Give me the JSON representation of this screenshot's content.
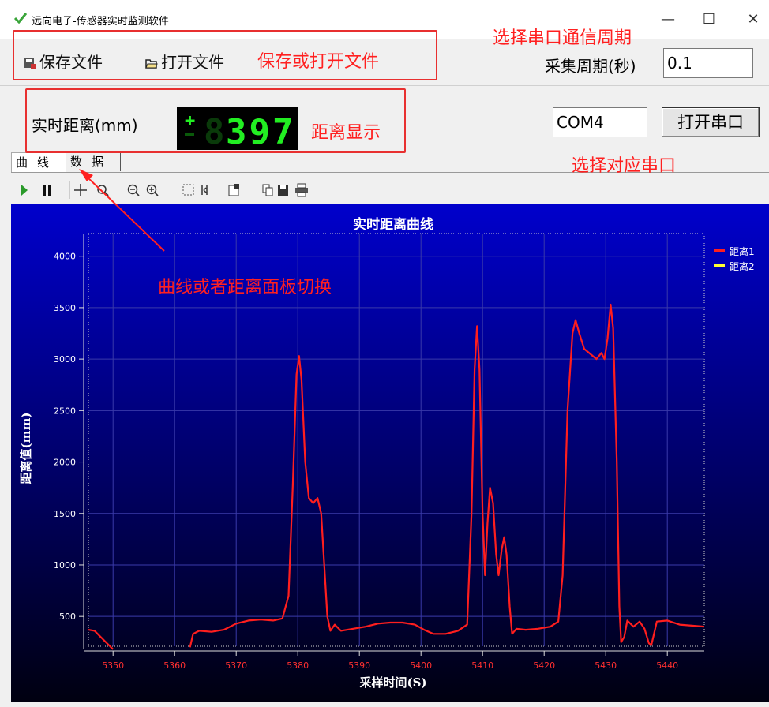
{
  "window": {
    "title": "远向电子-传感器实时监测软件",
    "minimize_glyph": "—",
    "maximize_glyph": "☐",
    "close_glyph": "✕"
  },
  "toolbar": {
    "save_label": "保存文件",
    "open_label": "打开文件"
  },
  "serial": {
    "period_label": "采集周期(秒)",
    "period_value": "0.1",
    "port_value": "COM4",
    "open_port_label": "打开串口"
  },
  "display": {
    "distance_label": "实时距离(mm)",
    "led_sign": "+",
    "led_value": "397"
  },
  "tabs": [
    {
      "label": "曲线"
    },
    {
      "label": "数据"
    }
  ],
  "annotations": {
    "save_open": "保存或打开文件",
    "period": "选择串口通信周期",
    "distance": "距离显示",
    "port": "选择对应串口",
    "tab_switch": "曲线或者距离面板切换"
  },
  "colors": {
    "annotation": "#ff2020",
    "chart_bg_top": "#0000cc",
    "chart_bg_bottom": "#000010",
    "series1": "#ff1e1e",
    "series2": "#ffff33",
    "led_on": "#22ee22",
    "led_off": "#0a3a0a"
  },
  "chart_data": {
    "type": "line",
    "title": "实时距离曲线",
    "xlabel": "采样时间(S)",
    "ylabel": "距离值(mm)",
    "xlim": [
      5346,
      5446
    ],
    "ylim": [
      210,
      4220
    ],
    "xticks": [
      5350,
      5360,
      5370,
      5380,
      5390,
      5400,
      5410,
      5420,
      5430,
      5440
    ],
    "yticks": [
      500,
      1000,
      1500,
      2000,
      2500,
      3000,
      3500,
      4000
    ],
    "grid": true,
    "legend_position": "top-right",
    "series": [
      {
        "name": "距离1",
        "color": "#ff1e1e",
        "points": [
          [
            5346,
            370
          ],
          [
            5347,
            360
          ],
          [
            5348,
            300
          ],
          [
            5349,
            240
          ],
          [
            5350,
            180
          ],
          [
            5362.5,
            200
          ],
          [
            5363,
            330
          ],
          [
            5364,
            360
          ],
          [
            5366,
            350
          ],
          [
            5368,
            370
          ],
          [
            5370,
            430
          ],
          [
            5372,
            460
          ],
          [
            5374,
            470
          ],
          [
            5376,
            460
          ],
          [
            5377.5,
            480
          ],
          [
            5378.5,
            700
          ],
          [
            5379.2,
            1800
          ],
          [
            5379.8,
            2850
          ],
          [
            5380.2,
            3030
          ],
          [
            5380.6,
            2800
          ],
          [
            5381.2,
            2000
          ],
          [
            5381.8,
            1650
          ],
          [
            5382.5,
            1600
          ],
          [
            5383.2,
            1650
          ],
          [
            5383.8,
            1500
          ],
          [
            5384.3,
            1000
          ],
          [
            5384.8,
            500
          ],
          [
            5385.3,
            360
          ],
          [
            5386,
            420
          ],
          [
            5387,
            360
          ],
          [
            5389,
            380
          ],
          [
            5391,
            400
          ],
          [
            5393,
            430
          ],
          [
            5395,
            440
          ],
          [
            5397,
            440
          ],
          [
            5399,
            420
          ],
          [
            5400.5,
            370
          ],
          [
            5402,
            330
          ],
          [
            5404,
            330
          ],
          [
            5406,
            360
          ],
          [
            5407.5,
            420
          ],
          [
            5408.2,
            1500
          ],
          [
            5408.7,
            2900
          ],
          [
            5409.1,
            3320
          ],
          [
            5409.5,
            2900
          ],
          [
            5410,
            1500
          ],
          [
            5410.4,
            900
          ],
          [
            5410.8,
            1400
          ],
          [
            5411.2,
            1750
          ],
          [
            5411.7,
            1600
          ],
          [
            5412.2,
            1100
          ],
          [
            5412.6,
            900
          ],
          [
            5413.1,
            1150
          ],
          [
            5413.5,
            1270
          ],
          [
            5413.9,
            1100
          ],
          [
            5414.4,
            600
          ],
          [
            5414.8,
            330
          ],
          [
            5415.5,
            380
          ],
          [
            5417,
            370
          ],
          [
            5419,
            380
          ],
          [
            5421,
            400
          ],
          [
            5422.3,
            450
          ],
          [
            5423,
            900
          ],
          [
            5423.8,
            2500
          ],
          [
            5424.6,
            3250
          ],
          [
            5425.1,
            3380
          ],
          [
            5425.7,
            3250
          ],
          [
            5426.5,
            3100
          ],
          [
            5427.5,
            3050
          ],
          [
            5428.5,
            3000
          ],
          [
            5429.3,
            3060
          ],
          [
            5429.8,
            3000
          ],
          [
            5430.3,
            3200
          ],
          [
            5430.8,
            3530
          ],
          [
            5431.2,
            3300
          ],
          [
            5431.8,
            2000
          ],
          [
            5432.2,
            600
          ],
          [
            5432.5,
            250
          ],
          [
            5433,
            300
          ],
          [
            5433.5,
            460
          ],
          [
            5434.5,
            400
          ],
          [
            5435.5,
            450
          ],
          [
            5436.3,
            380
          ],
          [
            5437,
            240
          ],
          [
            5437.4,
            220
          ],
          [
            5437.8,
            320
          ],
          [
            5438.3,
            450
          ],
          [
            5440,
            460
          ],
          [
            5442,
            420
          ],
          [
            5444,
            410
          ],
          [
            5446,
            400
          ]
        ]
      },
      {
        "name": "距离2",
        "color": "#ffff33",
        "points": []
      }
    ]
  }
}
